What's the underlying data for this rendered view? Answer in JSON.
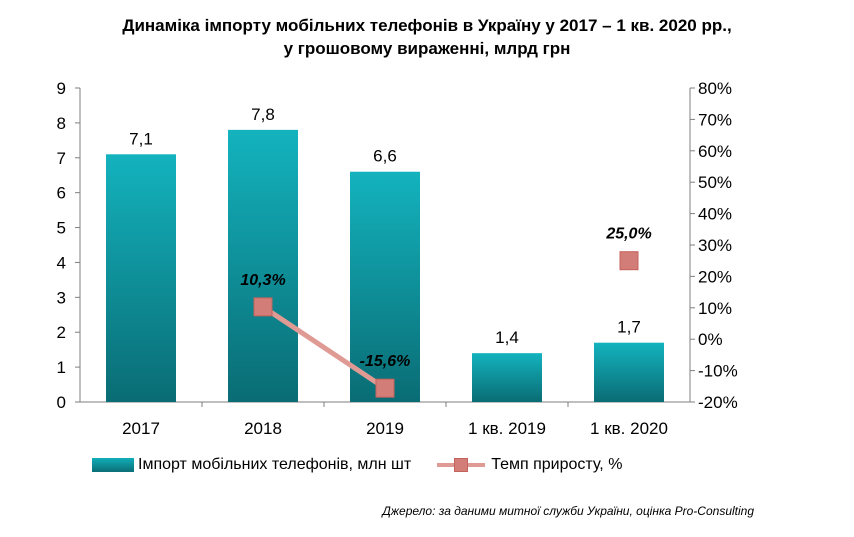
{
  "title_line1": "Динаміка імпорту мобільних телефонів в Україну у 2017 – 1 кв. 2020 рр.,",
  "title_line2": "у грошовому вираженні, млрд грн",
  "source": "Джерело: за даними митної служби України, оцінка Pro-Consulting",
  "colors": {
    "bar": "#0b9aa5",
    "line": "#e09a94",
    "marker": "#d27d77"
  },
  "chart_data": {
    "type": "bar",
    "categories": [
      "2017",
      "2018",
      "2019",
      "1 кв. 2019",
      "1 кв. 2020"
    ],
    "series": [
      {
        "name": "Імпорт мобільних телефонів, млн шт",
        "type": "bar",
        "axis": "left",
        "values": [
          7.1,
          7.8,
          6.6,
          1.4,
          1.7
        ],
        "labels": [
          "7,1",
          "7,8",
          "6,6",
          "1,4",
          "1,7"
        ]
      },
      {
        "name": "Темп приросту, %",
        "type": "line",
        "axis": "right",
        "values": [
          null,
          10.3,
          -15.6,
          null,
          25.0
        ],
        "labels": [
          "",
          "10,3%",
          "-15,6%",
          "",
          "25,0%"
        ]
      }
    ],
    "y_left": {
      "min": 0,
      "max": 9,
      "ticks": [
        "0",
        "1",
        "2",
        "3",
        "4",
        "5",
        "6",
        "7",
        "8",
        "9"
      ]
    },
    "y_right": {
      "min": -20,
      "max": 80,
      "ticks": [
        "-20%",
        "-10%",
        "0%",
        "10%",
        "20%",
        "30%",
        "40%",
        "50%",
        "60%",
        "70%",
        "80%"
      ]
    },
    "legend_position": "bottom",
    "grid": false
  }
}
